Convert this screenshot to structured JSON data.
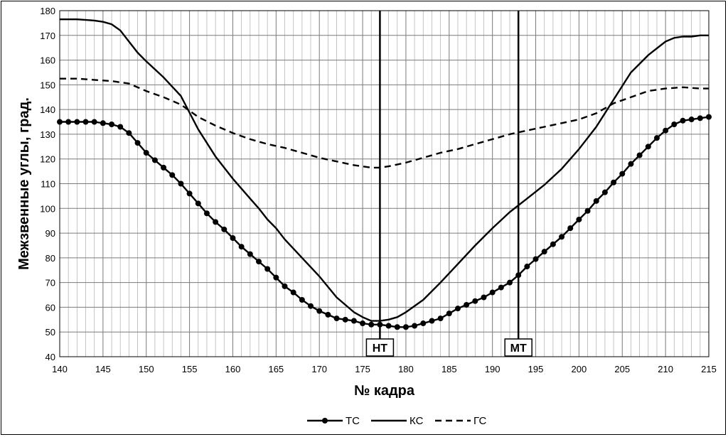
{
  "chart_data": {
    "type": "line",
    "title": "",
    "xlabel": "№ кадра",
    "ylabel": "Межзвенные углы, град.",
    "xlim": [
      140,
      215
    ],
    "ylim": [
      40,
      180
    ],
    "x_ticks": [
      140,
      145,
      150,
      155,
      160,
      165,
      170,
      175,
      180,
      185,
      190,
      195,
      200,
      205,
      210,
      215
    ],
    "y_ticks": [
      40,
      50,
      60,
      70,
      80,
      90,
      100,
      110,
      120,
      130,
      140,
      150,
      160,
      170,
      180
    ],
    "x_minor_step": 1,
    "grid": true,
    "legend_position": "bottom",
    "series": [
      {
        "name": "ТС",
        "style": "solid-markers",
        "x": [
          140,
          141,
          142,
          143,
          144,
          145,
          146,
          147,
          148,
          149,
          150,
          151,
          152,
          153,
          154,
          155,
          156,
          157,
          158,
          159,
          160,
          161,
          162,
          163,
          164,
          165,
          166,
          167,
          168,
          169,
          170,
          171,
          172,
          173,
          174,
          175,
          176,
          177,
          178,
          179,
          180,
          181,
          182,
          183,
          184,
          185,
          186,
          187,
          188,
          189,
          190,
          191,
          192,
          193,
          194,
          195,
          196,
          197,
          198,
          199,
          200,
          201,
          202,
          203,
          204,
          205,
          206,
          207,
          208,
          209,
          210,
          211,
          212,
          213,
          214,
          215
        ],
        "y": [
          135,
          135,
          135,
          135,
          135,
          134.5,
          134,
          133,
          130.5,
          126.5,
          122.5,
          119.5,
          116.5,
          113.5,
          110,
          106,
          102,
          98,
          94.5,
          91.5,
          88,
          84.5,
          81.5,
          78.5,
          75.5,
          72,
          68.5,
          66,
          63,
          60.5,
          58.5,
          57,
          55.5,
          55,
          54.5,
          53.5,
          53,
          53,
          52.5,
          52,
          52,
          52.5,
          53.5,
          54.5,
          55.5,
          57.5,
          59.5,
          61,
          62.5,
          64,
          66,
          68,
          70,
          73,
          76.5,
          79.5,
          82.5,
          85.5,
          88.5,
          92,
          95.5,
          99,
          103,
          106.5,
          110.5,
          114,
          118,
          121.5,
          125,
          128.5,
          131.5,
          134,
          135.5,
          136,
          136.5,
          137
        ]
      },
      {
        "name": "КС",
        "style": "solid",
        "x": [
          140,
          142,
          144,
          145,
          146,
          147,
          148,
          149,
          150,
          152,
          154,
          156,
          158,
          160,
          162,
          163,
          164,
          165,
          166,
          168,
          170,
          172,
          174,
          175,
          176,
          177,
          178,
          179,
          180,
          182,
          184,
          186,
          188,
          190,
          192,
          194,
          196,
          198,
          200,
          202,
          204,
          206,
          208,
          210,
          211,
          212,
          213,
          214,
          215
        ],
        "y": [
          176.5,
          176.5,
          176,
          175.5,
          174.5,
          172,
          167.5,
          163,
          159.5,
          153,
          145.5,
          132,
          121,
          112,
          104,
          100,
          95.5,
          92,
          87.5,
          80,
          72.5,
          64,
          58,
          56,
          54.5,
          54.5,
          55,
          56,
          58,
          63,
          70,
          77.5,
          85,
          92,
          98.5,
          104,
          109.5,
          116,
          124,
          133,
          144,
          155,
          162,
          167.5,
          169,
          169.5,
          169.5,
          170,
          170
        ]
      },
      {
        "name": "ГС",
        "style": "dashed",
        "x": [
          140,
          142,
          144,
          146,
          148,
          150,
          152,
          154,
          156,
          158,
          160,
          162,
          164,
          166,
          168,
          170,
          172,
          174,
          176,
          177,
          178,
          180,
          182,
          184,
          186,
          188,
          190,
          192,
          194,
          196,
          198,
          200,
          202,
          204,
          206,
          208,
          210,
          212,
          214,
          215
        ],
        "y": [
          152.5,
          152.5,
          152,
          151.5,
          150.5,
          147.5,
          145,
          142,
          137,
          133.5,
          130.5,
          128,
          126,
          124.5,
          122.5,
          120.5,
          119,
          117.5,
          116.5,
          116.5,
          117,
          118.5,
          120.5,
          122.5,
          124,
          126,
          128,
          130,
          131.5,
          133,
          134.5,
          136,
          138.5,
          142.5,
          145,
          147.5,
          148.5,
          149,
          148.5,
          148.5
        ]
      }
    ],
    "vertical_markers": [
      {
        "label": "НТ",
        "x": 177
      },
      {
        "label": "МТ",
        "x": 193
      }
    ]
  }
}
